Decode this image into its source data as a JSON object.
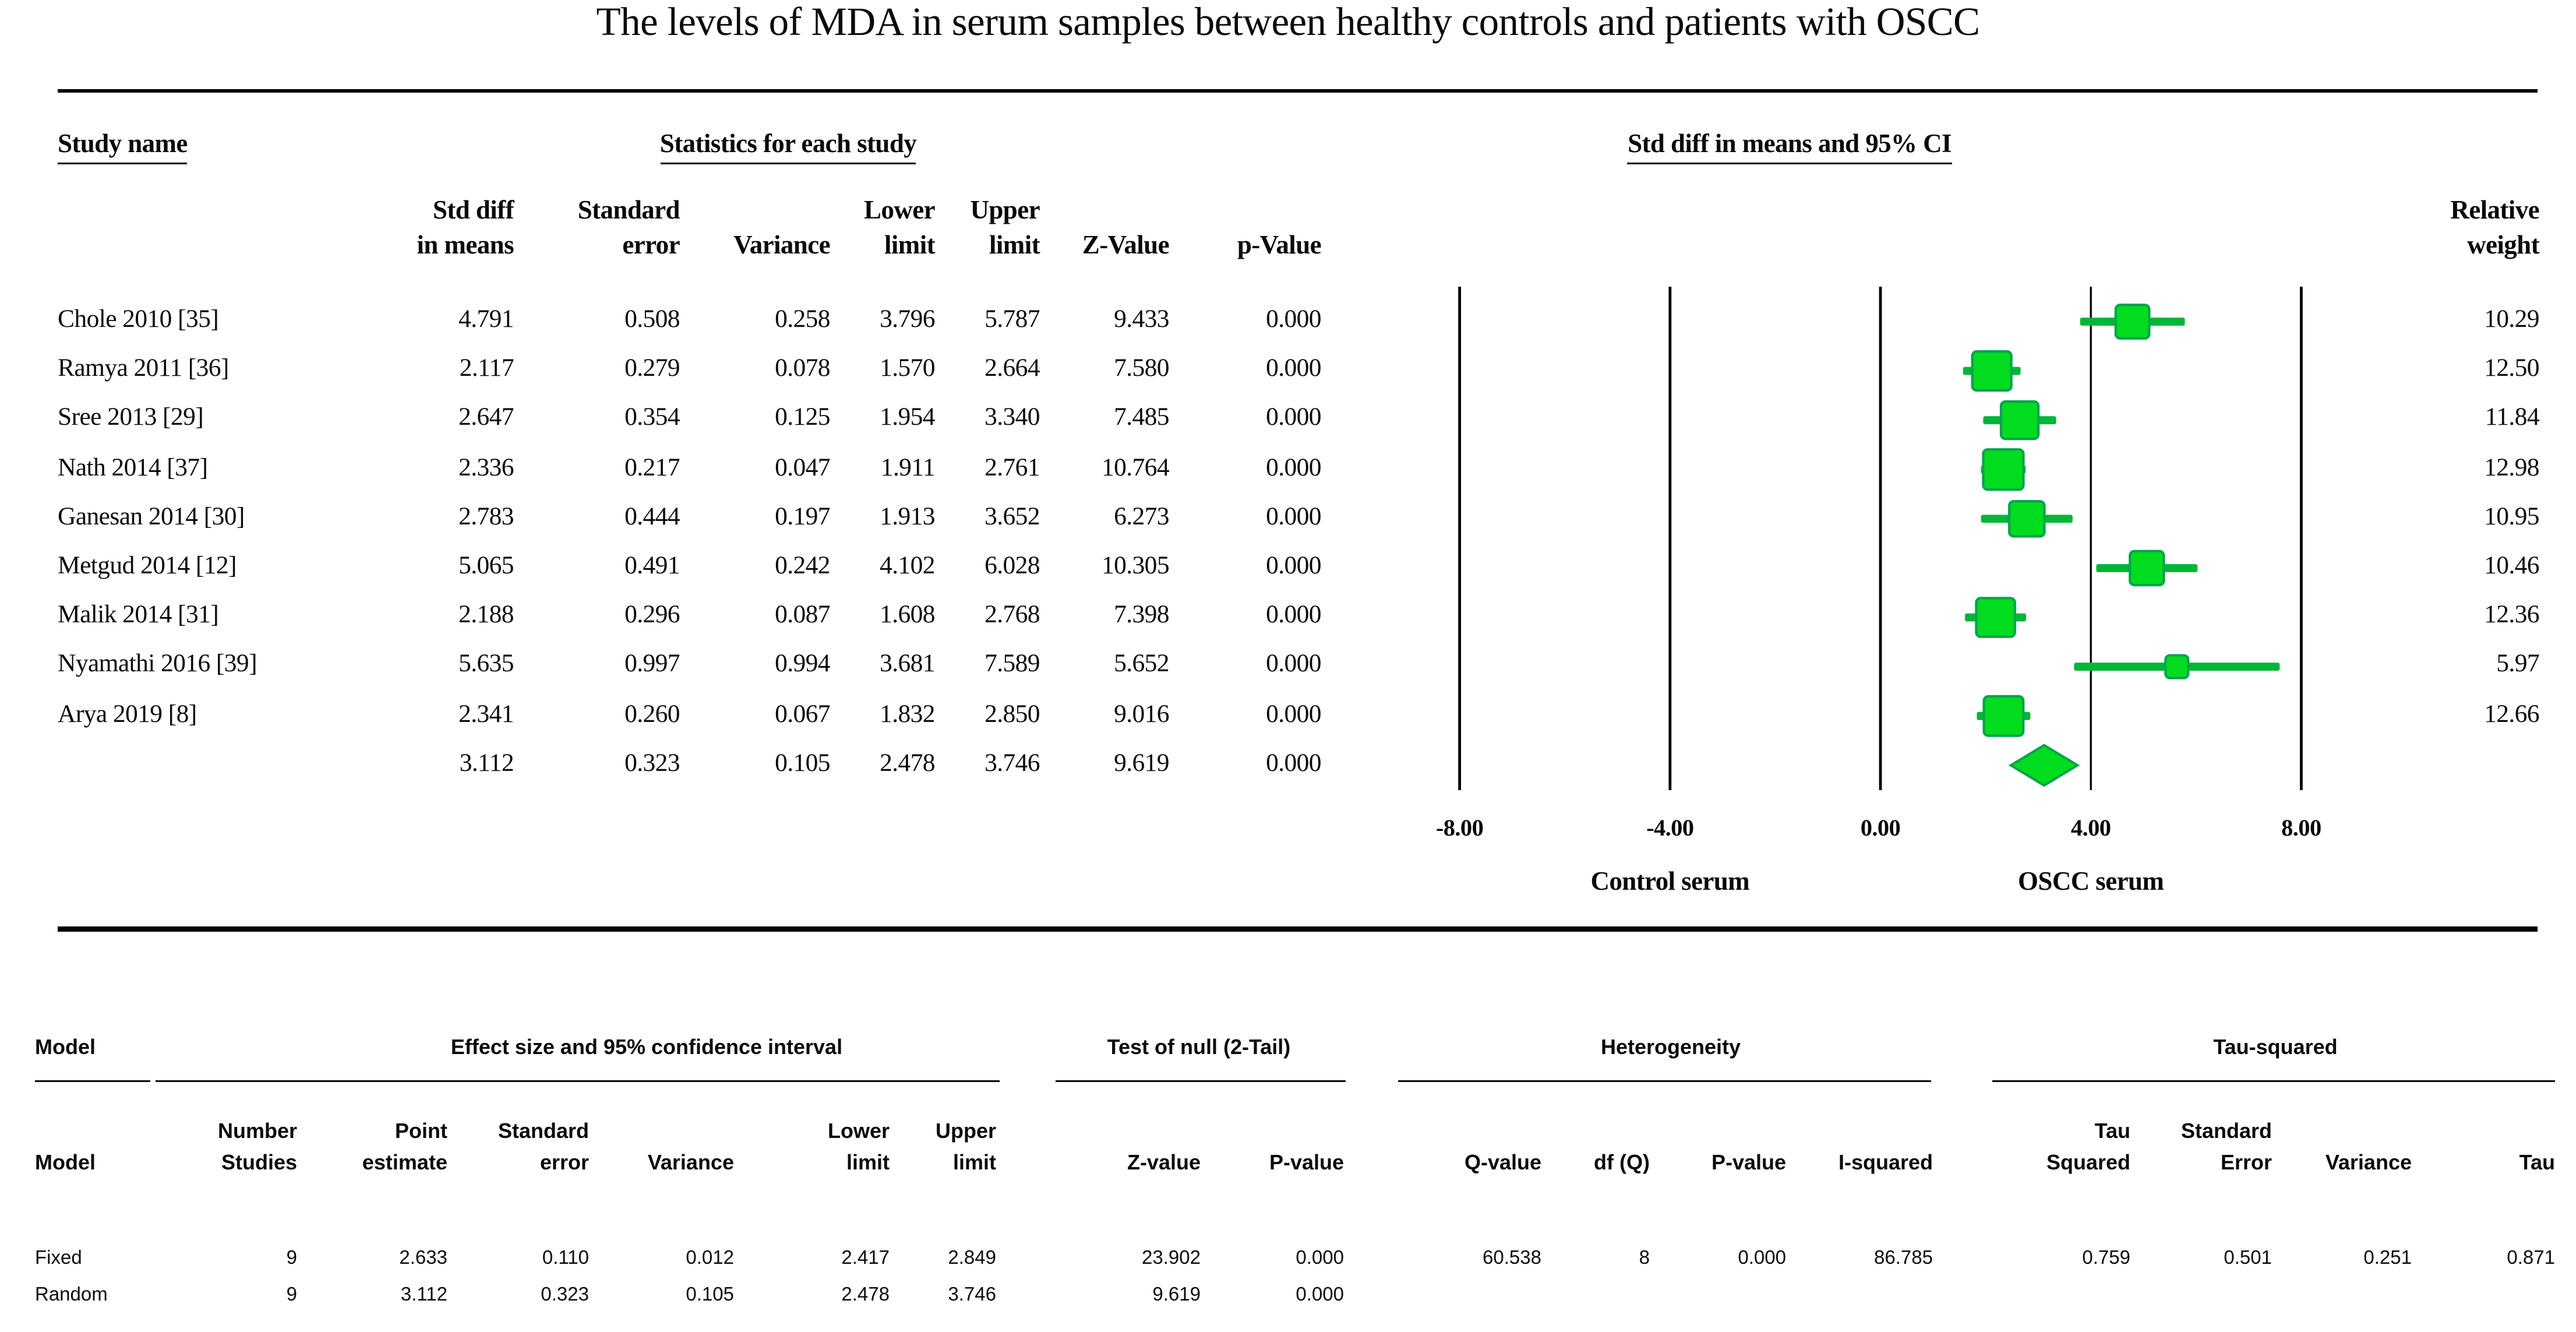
{
  "title": "The levels of MDA in serum samples between healthy controls and patients with OSCC",
  "forest_table": {
    "study_col_header": "Study name",
    "stats_group_header": "Statistics for each study",
    "plot_group_header": "Std diff in means and 95% CI",
    "weight_header_line1": "Relative",
    "weight_header_line2": "weight",
    "stat_col_headers": [
      {
        "line1": "Std diff",
        "line2": "in means"
      },
      {
        "line1": "Standard",
        "line2": "error"
      },
      {
        "line1": "",
        "line2": "Variance"
      },
      {
        "line1": "Lower",
        "line2": "limit"
      },
      {
        "line1": "Upper",
        "line2": "limit"
      },
      {
        "line1": "",
        "line2": "Z-Value"
      },
      {
        "line1": "",
        "line2": "p-Value"
      }
    ]
  },
  "chart_data": {
    "type": "forest",
    "title": "The levels of MDA in serum samples between healthy controls and patients with OSCC",
    "xlim": [
      -8,
      8
    ],
    "tick_values": [
      -8,
      -4,
      0,
      4,
      8
    ],
    "tick_labels": [
      "-8.00",
      "-4.00",
      "0.00",
      "4.00",
      "8.00"
    ],
    "xlabel_left": "Control serum",
    "xlabel_right": "OSCC serum",
    "marker_fill": "#00DC1E",
    "marker_edge": "#00A44C",
    "ci_color": "#00B637",
    "studies": [
      {
        "name": "Chole 2010 [35]",
        "std_diff": 4.791,
        "std_err": 0.508,
        "variance": 0.258,
        "lower": 3.796,
        "upper": 5.787,
        "z": 9.433,
        "p": "0.000",
        "weight": 10.29
      },
      {
        "name": "Ramya 2011 [36]",
        "std_diff": 2.117,
        "std_err": 0.279,
        "variance": 0.078,
        "lower": 1.57,
        "upper": 2.664,
        "z": 7.58,
        "p": "0.000",
        "weight": 12.5
      },
      {
        "name": "Sree 2013 [29]",
        "std_diff": 2.647,
        "std_err": 0.354,
        "variance": 0.125,
        "lower": 1.954,
        "upper": 3.34,
        "z": 7.485,
        "p": "0.000",
        "weight": 11.84
      },
      {
        "name": "Nath 2014 [37]",
        "std_diff": 2.336,
        "std_err": 0.217,
        "variance": 0.047,
        "lower": 1.911,
        "upper": 2.761,
        "z": 10.764,
        "p": "0.000",
        "weight": 12.98
      },
      {
        "name": "Ganesan 2014 [30]",
        "std_diff": 2.783,
        "std_err": 0.444,
        "variance": 0.197,
        "lower": 1.913,
        "upper": 3.652,
        "z": 6.273,
        "p": "0.000",
        "weight": 10.95
      },
      {
        "name": "Metgud 2014 [12]",
        "std_diff": 5.065,
        "std_err": 0.491,
        "variance": 0.242,
        "lower": 4.102,
        "upper": 6.028,
        "z": 10.305,
        "p": "0.000",
        "weight": 10.46
      },
      {
        "name": "Malik 2014 [31]",
        "std_diff": 2.188,
        "std_err": 0.296,
        "variance": 0.087,
        "lower": 1.608,
        "upper": 2.768,
        "z": 7.398,
        "p": "0.000",
        "weight": 12.36
      },
      {
        "name": "Nyamathi 2016 [39]",
        "std_diff": 5.635,
        "std_err": 0.997,
        "variance": 0.994,
        "lower": 3.681,
        "upper": 7.589,
        "z": 5.652,
        "p": "0.000",
        "weight": 5.97
      },
      {
        "name": "Arya 2019 [8]",
        "std_diff": 2.341,
        "std_err": 0.26,
        "variance": 0.067,
        "lower": 1.832,
        "upper": 2.85,
        "z": 9.016,
        "p": "0.000",
        "weight": 12.66
      }
    ],
    "summary": {
      "std_diff": 3.112,
      "std_err": 0.323,
      "variance": 0.105,
      "lower": 2.478,
      "upper": 3.746,
      "z": 9.619,
      "p": "0.000"
    }
  },
  "model_table": {
    "model_group_header": "Model",
    "model_sub_header": "Model",
    "group_headers": [
      "Effect size and 95% confidence interval",
      "Test of null (2-Tail)",
      "Heterogeneity",
      "Tau-squared"
    ],
    "sub_headers": [
      {
        "line1": "Number",
        "line2": "Studies"
      },
      {
        "line1": "Point",
        "line2": "estimate"
      },
      {
        "line1": "Standard",
        "line2": "error"
      },
      {
        "line1": "",
        "line2": "Variance"
      },
      {
        "line1": "Lower",
        "line2": "limit"
      },
      {
        "line1": "Upper",
        "line2": "limit"
      },
      {
        "line1": "",
        "line2": "Z-value"
      },
      {
        "line1": "",
        "line2": "P-value"
      },
      {
        "line1": "",
        "line2": "Q-value"
      },
      {
        "line1": "",
        "line2": "df (Q)"
      },
      {
        "line1": "",
        "line2": "P-value"
      },
      {
        "line1": "",
        "line2": "I-squared"
      },
      {
        "line1": "Tau",
        "line2": "Squared"
      },
      {
        "line1": "Standard",
        "line2": "Error"
      },
      {
        "line1": "",
        "line2": "Variance"
      },
      {
        "line1": "",
        "line2": "Tau"
      }
    ],
    "rows": [
      {
        "label": "Fixed",
        "values": [
          "9",
          "2.633",
          "0.110",
          "0.012",
          "2.417",
          "2.849",
          "23.902",
          "0.000",
          "60.538",
          "8",
          "0.000",
          "86.785",
          "0.759",
          "0.501",
          "0.251",
          "0.871"
        ]
      },
      {
        "label": "Random",
        "values": [
          "9",
          "3.112",
          "0.323",
          "0.105",
          "2.478",
          "3.746",
          "9.619",
          "0.000",
          "",
          "",
          "",
          "",
          "",
          "",
          "",
          ""
        ]
      }
    ]
  }
}
